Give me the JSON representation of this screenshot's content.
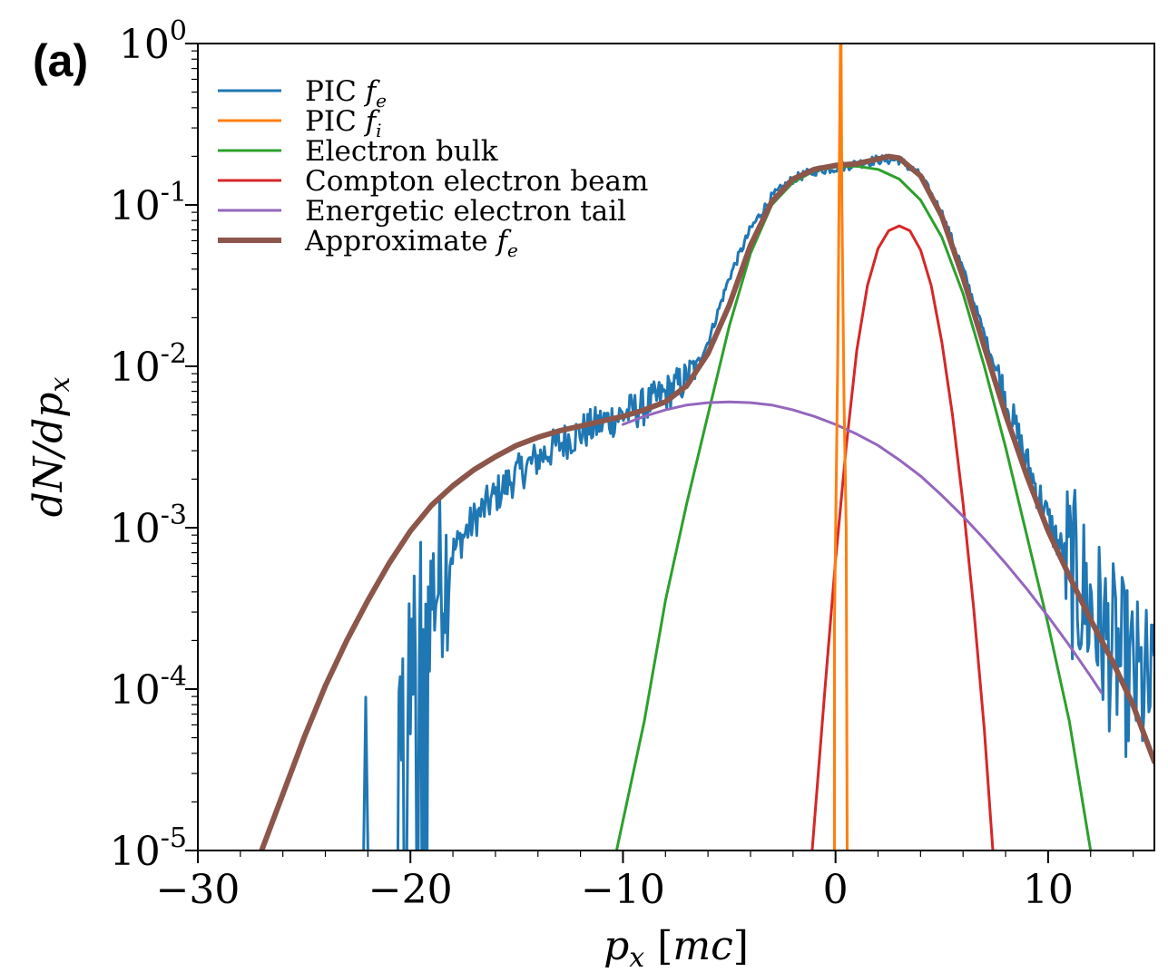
{
  "chart_data": {
    "type": "line",
    "panel_label": "(a)",
    "xlabel": "p_x [mc]",
    "ylabel": "dN/dp_x",
    "xlim": [
      -30,
      15
    ],
    "ylim_log10": [
      -5,
      0
    ],
    "y_scale": "log",
    "x_ticks": [
      {
        "value": -30,
        "label": "−30"
      },
      {
        "value": -20,
        "label": "−20"
      },
      {
        "value": -10,
        "label": "−10"
      },
      {
        "value": 0,
        "label": "0"
      },
      {
        "value": 10,
        "label": "10"
      }
    ],
    "y_ticks": [
      {
        "exp": 0,
        "base": "10",
        "sup": "0"
      },
      {
        "exp": -1,
        "base": "10",
        "sup": "-1"
      },
      {
        "exp": -2,
        "base": "10",
        "sup": "-2"
      },
      {
        "exp": -3,
        "base": "10",
        "sup": "-3"
      },
      {
        "exp": -4,
        "base": "10",
        "sup": "-4"
      },
      {
        "exp": -5,
        "base": "10",
        "sup": "-5"
      }
    ],
    "legend": {
      "position": "top-left",
      "entries": [
        {
          "text": "PIC ",
          "math": "f",
          "sub": "e",
          "color": "#1f77b4",
          "width": 3
        },
        {
          "text": "PIC ",
          "math": "f",
          "sub": "i",
          "color": "#ff7f0e",
          "width": 3
        },
        {
          "text": "Electron bulk",
          "math": "",
          "sub": "",
          "color": "#2ca02c",
          "width": 3
        },
        {
          "text": "Compton electron beam",
          "math": "",
          "sub": "",
          "color": "#d62728",
          "width": 3
        },
        {
          "text": "Energetic electron tail",
          "math": "",
          "sub": "",
          "color": "#9467bd",
          "width": 3
        },
        {
          "text": "Approximate ",
          "math": "f",
          "sub": "e",
          "color": "#8c564b",
          "width": 6
        }
      ]
    },
    "series": [
      {
        "name": "PIC f_e",
        "color": "#1f77b4",
        "noisy": true,
        "points": [
          [
            -22.2,
            -5.0
          ],
          [
            -22.1,
            -4.05
          ],
          [
            -22.0,
            -5.0
          ],
          [
            -20.8,
            -5.0
          ],
          [
            -20.6,
            -4.2
          ],
          [
            -20.3,
            -4.0
          ],
          [
            -20.0,
            -3.85
          ],
          [
            -19.5,
            -3.6
          ],
          [
            -19.0,
            -3.4
          ],
          [
            -18.0,
            -3.15
          ],
          [
            -17.0,
            -2.95
          ],
          [
            -16.0,
            -2.8
          ],
          [
            -15.0,
            -2.67
          ],
          [
            -14.0,
            -2.57
          ],
          [
            -13.0,
            -2.48
          ],
          [
            -12.0,
            -2.41
          ],
          [
            -11.0,
            -2.35
          ],
          [
            -10.0,
            -2.3
          ],
          [
            -9.0,
            -2.25
          ],
          [
            -8.0,
            -2.17
          ],
          [
            -7.0,
            -2.08
          ],
          [
            -6.5,
            -1.98
          ],
          [
            -6.0,
            -1.85
          ],
          [
            -5.5,
            -1.65
          ],
          [
            -5.0,
            -1.45
          ],
          [
            -4.0,
            -1.15
          ],
          [
            -3.0,
            -0.95
          ],
          [
            -2.0,
            -0.84
          ],
          [
            -1.0,
            -0.79
          ],
          [
            0.0,
            -0.77
          ],
          [
            1.0,
            -0.745
          ],
          [
            2.0,
            -0.72
          ],
          [
            3.0,
            -0.72
          ],
          [
            4.0,
            -0.82
          ],
          [
            5.0,
            -1.05
          ],
          [
            6.0,
            -1.4
          ],
          [
            7.0,
            -1.8
          ],
          [
            8.0,
            -2.2
          ],
          [
            9.0,
            -2.6
          ],
          [
            10.0,
            -2.95
          ],
          [
            11.0,
            -3.25
          ],
          [
            12.0,
            -3.5
          ],
          [
            13.0,
            -3.75
          ],
          [
            14.0,
            -3.95
          ],
          [
            15.0,
            -4.05
          ]
        ]
      },
      {
        "name": "PIC f_i",
        "color": "#ff7f0e",
        "noisy": false,
        "points": [
          [
            -0.05,
            -5.0
          ],
          [
            -0.05,
            -3.6
          ],
          [
            0.1,
            -2.0
          ],
          [
            0.2,
            -0.4
          ],
          [
            0.25,
            0.3
          ],
          [
            0.3,
            -1.0
          ],
          [
            0.4,
            -2.2
          ],
          [
            0.5,
            -3.0
          ],
          [
            0.55,
            -5.0
          ]
        ]
      },
      {
        "name": "Electron bulk",
        "color": "#2ca02c",
        "noisy": false,
        "points": [
          [
            -10.3,
            -5.0
          ],
          [
            -9.0,
            -4.2
          ],
          [
            -8.0,
            -3.45
          ],
          [
            -7.0,
            -2.85
          ],
          [
            -6.0,
            -2.3
          ],
          [
            -5.0,
            -1.75
          ],
          [
            -4.0,
            -1.3
          ],
          [
            -3.0,
            -1.0
          ],
          [
            -2.0,
            -0.86
          ],
          [
            -1.0,
            -0.79
          ],
          [
            0.0,
            -0.765
          ],
          [
            1.0,
            -0.76
          ],
          [
            2.0,
            -0.78
          ],
          [
            3.0,
            -0.84
          ],
          [
            4.0,
            -0.97
          ],
          [
            5.0,
            -1.2
          ],
          [
            6.0,
            -1.55
          ],
          [
            7.0,
            -2.0
          ],
          [
            8.0,
            -2.5
          ],
          [
            9.0,
            -3.05
          ],
          [
            10.0,
            -3.6
          ],
          [
            11.0,
            -4.2
          ],
          [
            12.0,
            -5.0
          ]
        ]
      },
      {
        "name": "Compton electron beam",
        "color": "#d62728",
        "noisy": false,
        "points": [
          [
            -1.1,
            -5.0
          ],
          [
            -0.5,
            -4.0
          ],
          [
            0.0,
            -3.2
          ],
          [
            0.5,
            -2.5
          ],
          [
            1.0,
            -1.9
          ],
          [
            1.5,
            -1.5
          ],
          [
            2.0,
            -1.27
          ],
          [
            2.5,
            -1.16
          ],
          [
            3.0,
            -1.13
          ],
          [
            3.5,
            -1.16
          ],
          [
            4.0,
            -1.28
          ],
          [
            4.5,
            -1.5
          ],
          [
            5.0,
            -1.85
          ],
          [
            5.5,
            -2.3
          ],
          [
            6.0,
            -2.85
          ],
          [
            6.5,
            -3.5
          ],
          [
            7.0,
            -4.25
          ],
          [
            7.4,
            -5.0
          ]
        ]
      },
      {
        "name": "Energetic electron tail",
        "color": "#9467bd",
        "noisy": false,
        "points": [
          [
            -10.0,
            -2.36
          ],
          [
            -9.0,
            -2.31
          ],
          [
            -8.0,
            -2.27
          ],
          [
            -7.0,
            -2.24
          ],
          [
            -6.0,
            -2.225
          ],
          [
            -5.0,
            -2.22
          ],
          [
            -4.0,
            -2.225
          ],
          [
            -3.0,
            -2.24
          ],
          [
            -2.0,
            -2.27
          ],
          [
            -1.0,
            -2.31
          ],
          [
            0.0,
            -2.36
          ],
          [
            1.0,
            -2.42
          ],
          [
            2.0,
            -2.49
          ],
          [
            3.0,
            -2.58
          ],
          [
            4.0,
            -2.68
          ],
          [
            5.0,
            -2.8
          ],
          [
            6.0,
            -2.93
          ],
          [
            7.0,
            -3.07
          ],
          [
            8.0,
            -3.22
          ],
          [
            9.0,
            -3.38
          ],
          [
            10.0,
            -3.55
          ],
          [
            11.0,
            -3.73
          ],
          [
            12.0,
            -3.92
          ],
          [
            12.5,
            -4.02
          ]
        ]
      },
      {
        "name": "Approximate f_e",
        "color": "#8c564b",
        "noisy": false,
        "points": [
          [
            -27.0,
            -5.0
          ],
          [
            -26.0,
            -4.65
          ],
          [
            -25.0,
            -4.3
          ],
          [
            -24.0,
            -3.98
          ],
          [
            -23.0,
            -3.7
          ],
          [
            -22.0,
            -3.45
          ],
          [
            -21.0,
            -3.22
          ],
          [
            -20.0,
            -3.02
          ],
          [
            -19.0,
            -2.86
          ],
          [
            -18.0,
            -2.74
          ],
          [
            -17.0,
            -2.64
          ],
          [
            -16.0,
            -2.56
          ],
          [
            -15.0,
            -2.49
          ],
          [
            -14.0,
            -2.44
          ],
          [
            -13.0,
            -2.4
          ],
          [
            -12.0,
            -2.37
          ],
          [
            -11.0,
            -2.34
          ],
          [
            -10.0,
            -2.31
          ],
          [
            -9.0,
            -2.27
          ],
          [
            -8.0,
            -2.22
          ],
          [
            -7.0,
            -2.12
          ],
          [
            -6.0,
            -1.92
          ],
          [
            -5.0,
            -1.62
          ],
          [
            -4.0,
            -1.25
          ],
          [
            -3.0,
            -0.98
          ],
          [
            -2.0,
            -0.84
          ],
          [
            -1.0,
            -0.78
          ],
          [
            0.0,
            -0.755
          ],
          [
            1.0,
            -0.745
          ],
          [
            2.0,
            -0.715
          ],
          [
            2.5,
            -0.7
          ],
          [
            3.0,
            -0.71
          ],
          [
            4.0,
            -0.82
          ],
          [
            5.0,
            -1.07
          ],
          [
            6.0,
            -1.45
          ],
          [
            7.0,
            -1.88
          ],
          [
            8.0,
            -2.3
          ],
          [
            9.0,
            -2.68
          ],
          [
            10.0,
            -3.02
          ],
          [
            11.0,
            -3.3
          ],
          [
            12.0,
            -3.57
          ],
          [
            13.0,
            -3.82
          ],
          [
            14.0,
            -4.1
          ],
          [
            15.0,
            -4.45
          ]
        ]
      }
    ]
  }
}
